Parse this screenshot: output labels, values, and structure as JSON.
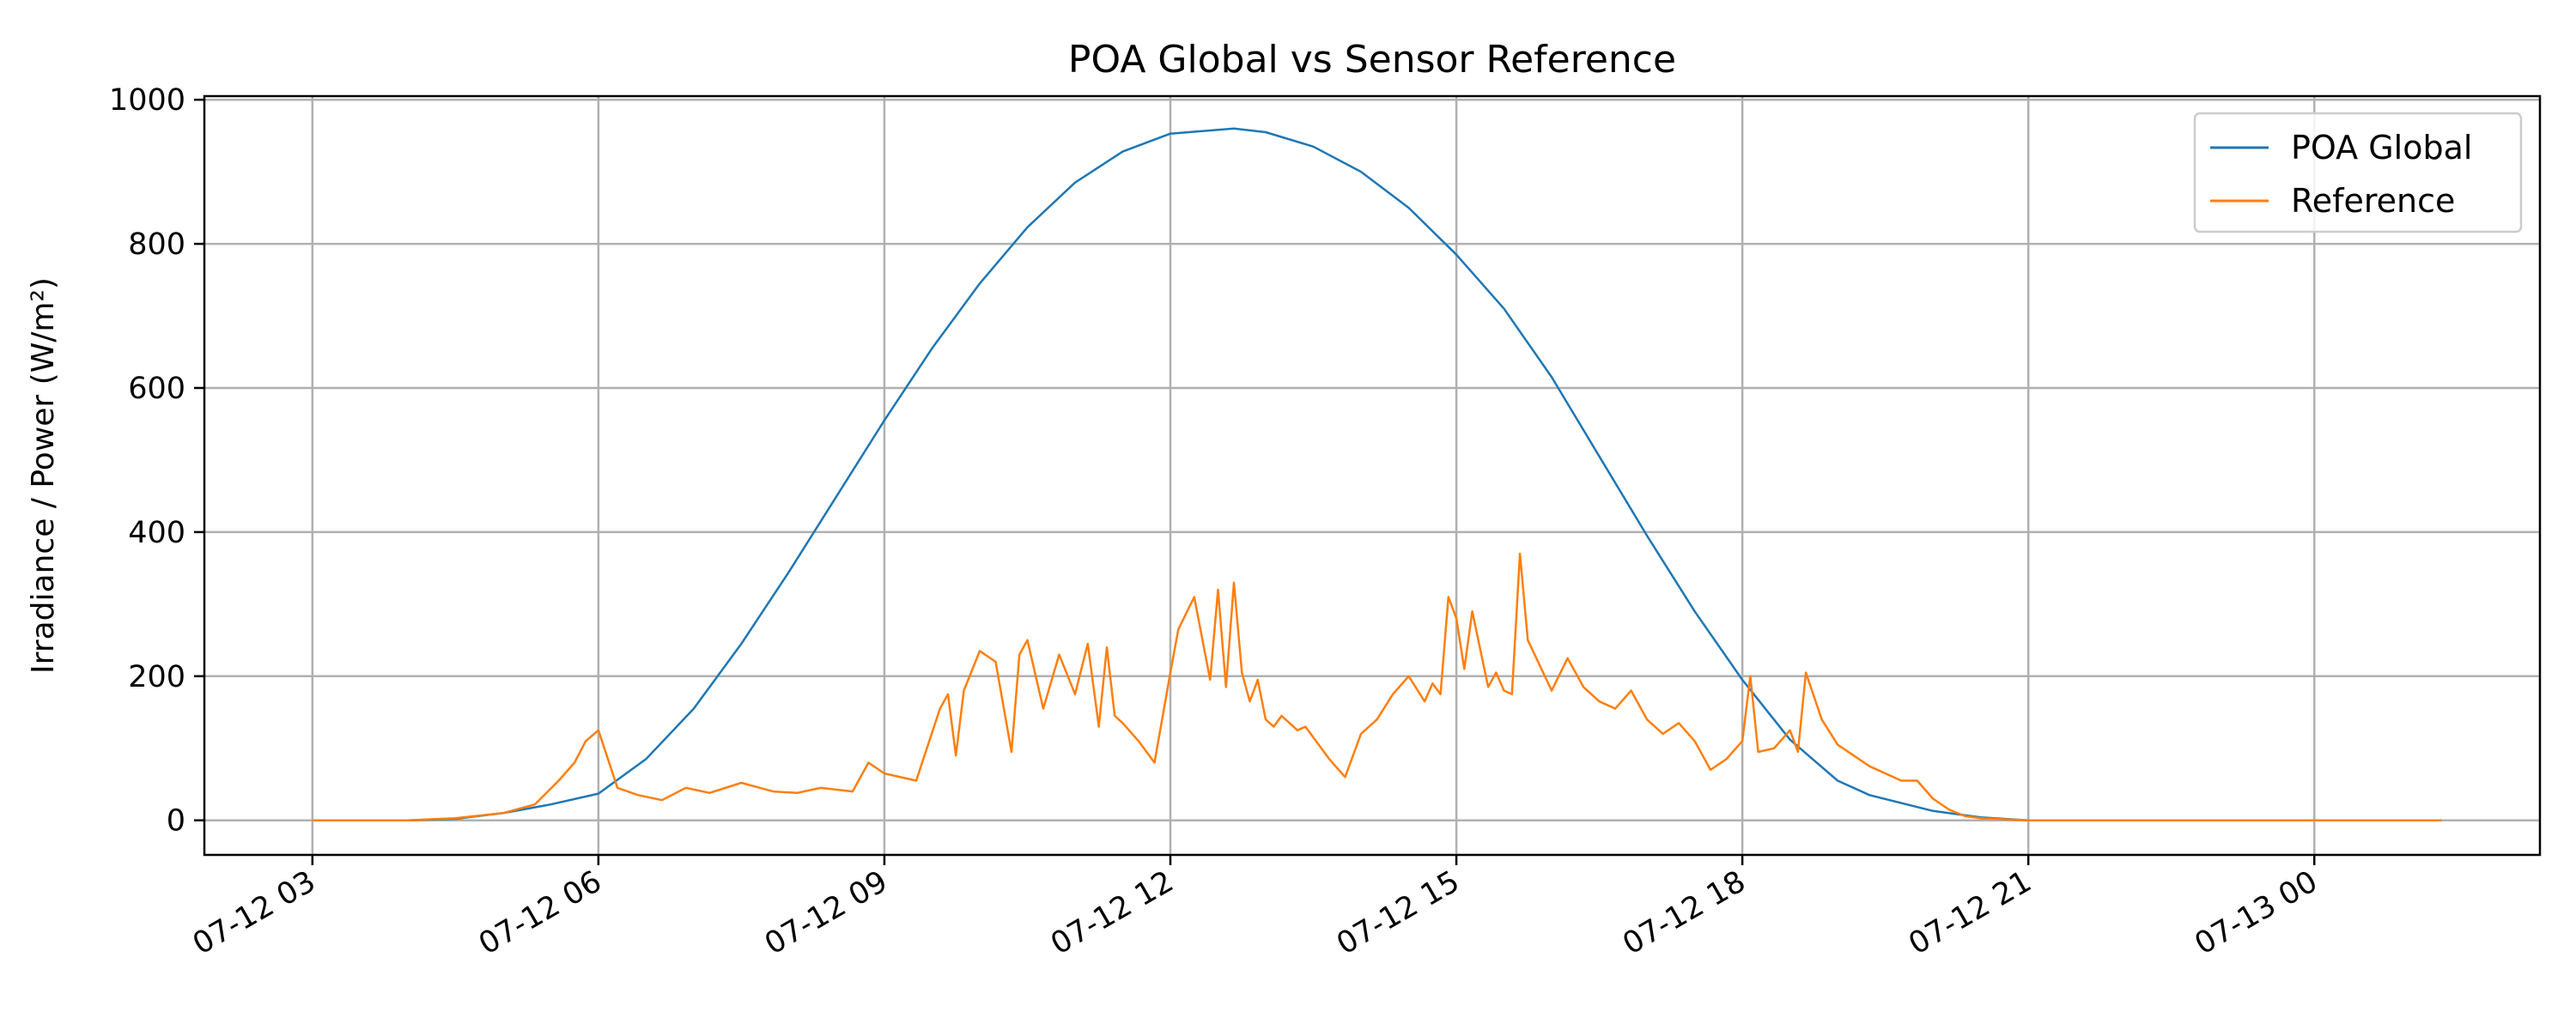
{
  "chart_data": {
    "type": "line",
    "title": "POA Global vs Sensor Reference",
    "xlabel": "",
    "ylabel": "Irradiance / Power (W/m²)",
    "x_axis": {
      "type": "datetime",
      "range": [
        "07-12 01:52",
        "07-13 02:22"
      ],
      "tick_labels": [
        "07-12 03",
        "07-12 06",
        "07-12 09",
        "07-12 12",
        "07-12 15",
        "07-12 18",
        "07-12 21",
        "07-13 00"
      ]
    },
    "ylim": [
      -48,
      1005
    ],
    "yticks": [
      0,
      200,
      400,
      600,
      800,
      1000
    ],
    "grid": true,
    "legend": {
      "position": "top-right"
    },
    "series": [
      {
        "name": "POA Global",
        "color": "#1f77b4",
        "x": [
          "07-12 03:00",
          "07-12 04:00",
          "07-12 04:30",
          "07-12 05:00",
          "07-12 05:30",
          "07-12 06:00",
          "07-12 06:30",
          "07-12 07:00",
          "07-12 07:30",
          "07-12 08:00",
          "07-12 08:30",
          "07-12 09:00",
          "07-12 09:30",
          "07-12 10:00",
          "07-12 10:30",
          "07-12 11:00",
          "07-12 11:30",
          "07-12 12:00",
          "07-12 12:40",
          "07-12 13:00",
          "07-12 13:30",
          "07-12 14:00",
          "07-12 14:30",
          "07-12 15:00",
          "07-12 15:30",
          "07-12 16:00",
          "07-12 16:30",
          "07-12 17:00",
          "07-12 17:30",
          "07-12 18:00",
          "07-12 18:30",
          "07-12 19:00",
          "07-12 19:20",
          "07-12 20:00",
          "07-12 20:30",
          "07-12 21:00",
          "07-13 01:20"
        ],
        "y": [
          0,
          0,
          2,
          10,
          22,
          37,
          85,
          155,
          245,
          345,
          450,
          555,
          655,
          745,
          823,
          885,
          928,
          953,
          960,
          955,
          935,
          900,
          850,
          785,
          710,
          615,
          505,
          395,
          290,
          195,
          112,
          55,
          35,
          13,
          4,
          0,
          0
        ]
      },
      {
        "name": "Reference",
        "color": "#ff7f0e",
        "x": [
          "07-12 03:00",
          "07-12 04:00",
          "07-12 04:30",
          "07-12 05:00",
          "07-12 05:20",
          "07-12 05:35",
          "07-12 05:45",
          "07-12 05:52",
          "07-12 06:00",
          "07-12 06:06",
          "07-12 06:12",
          "07-12 06:25",
          "07-12 06:40",
          "07-12 06:55",
          "07-12 07:10",
          "07-12 07:30",
          "07-12 07:50",
          "07-12 08:05",
          "07-12 08:20",
          "07-12 08:40",
          "07-12 08:50",
          "07-12 09:00",
          "07-12 09:20",
          "07-12 09:35",
          "07-12 09:40",
          "07-12 09:45",
          "07-12 09:50",
          "07-12 10:00",
          "07-12 10:10",
          "07-12 10:20",
          "07-12 10:25",
          "07-12 10:30",
          "07-12 10:40",
          "07-12 10:50",
          "07-12 11:00",
          "07-12 11:08",
          "07-12 11:15",
          "07-12 11:20",
          "07-12 11:25",
          "07-12 11:30",
          "07-12 11:40",
          "07-12 11:50",
          "07-12 12:00",
          "07-12 12:05",
          "07-12 12:15",
          "07-12 12:25",
          "07-12 12:30",
          "07-12 12:35",
          "07-12 12:40",
          "07-12 12:45",
          "07-12 12:50",
          "07-12 12:55",
          "07-12 13:00",
          "07-12 13:05",
          "07-12 13:10",
          "07-12 13:15",
          "07-12 13:20",
          "07-12 13:25",
          "07-12 13:40",
          "07-12 13:50",
          "07-12 14:00",
          "07-12 14:10",
          "07-12 14:20",
          "07-12 14:30",
          "07-12 14:40",
          "07-12 14:45",
          "07-12 14:50",
          "07-12 14:55",
          "07-12 15:00",
          "07-12 15:05",
          "07-12 15:10",
          "07-12 15:20",
          "07-12 15:25",
          "07-12 15:30",
          "07-12 15:35",
          "07-12 15:40",
          "07-12 15:45",
          "07-12 16:00",
          "07-12 16:10",
          "07-12 16:20",
          "07-12 16:30",
          "07-12 16:40",
          "07-12 16:50",
          "07-12 17:00",
          "07-12 17:10",
          "07-12 17:20",
          "07-12 17:30",
          "07-12 17:40",
          "07-12 17:50",
          "07-12 18:00",
          "07-12 18:05",
          "07-12 18:10",
          "07-12 18:20",
          "07-12 18:30",
          "07-12 18:35",
          "07-12 18:40",
          "07-12 18:50",
          "07-12 19:00",
          "07-12 19:20",
          "07-12 19:40",
          "07-12 19:50",
          "07-12 20:00",
          "07-12 20:10",
          "07-12 20:20",
          "07-12 20:30",
          "07-12 21:00",
          "07-13 01:20"
        ],
        "y": [
          0,
          0,
          3,
          10,
          22,
          55,
          80,
          110,
          125,
          85,
          45,
          35,
          28,
          45,
          38,
          52,
          40,
          38,
          45,
          40,
          80,
          65,
          55,
          155,
          175,
          90,
          180,
          235,
          220,
          95,
          230,
          250,
          155,
          230,
          175,
          245,
          130,
          240,
          145,
          135,
          110,
          80,
          205,
          265,
          310,
          195,
          320,
          185,
          330,
          205,
          165,
          195,
          140,
          130,
          145,
          135,
          125,
          130,
          85,
          60,
          120,
          140,
          175,
          200,
          165,
          190,
          175,
          310,
          280,
          210,
          290,
          185,
          205,
          180,
          175,
          370,
          250,
          180,
          225,
          185,
          165,
          155,
          180,
          140,
          120,
          135,
          110,
          70,
          85,
          110,
          200,
          95,
          100,
          125,
          95,
          205,
          140,
          105,
          75,
          55,
          55,
          30,
          15,
          6,
          3,
          0,
          0
        ]
      }
    ]
  }
}
